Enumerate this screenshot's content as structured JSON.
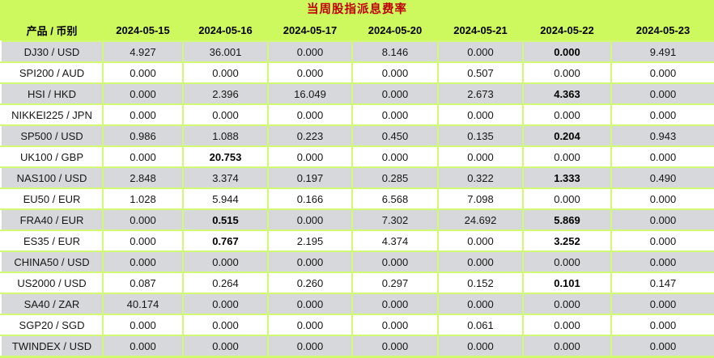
{
  "colors": {
    "header_background": "#cdf95f",
    "gridline": "#d2f973",
    "stripe_gray": "#d6d8dc",
    "stripe_white": "#ffffff",
    "title_red": "#c00000"
  },
  "chart_data": {
    "type": "table",
    "title": "当周股指派息费率",
    "columns": [
      "产品 / 币别",
      "2024-05-15",
      "2024-05-16",
      "2024-05-17",
      "2024-05-20",
      "2024-05-21",
      "2024-05-22",
      "2024-05-23"
    ],
    "rows": [
      {
        "product": "DJ30 / USD",
        "values": [
          "4.927",
          "36.001",
          "0.000",
          "8.146",
          "0.000",
          "0.000",
          "9.491"
        ],
        "bold": [
          false,
          false,
          false,
          false,
          false,
          true,
          false
        ]
      },
      {
        "product": "SPI200 / AUD",
        "values": [
          "0.000",
          "0.000",
          "0.000",
          "0.000",
          "0.507",
          "0.000",
          "0.000"
        ],
        "bold": [
          false,
          false,
          false,
          false,
          false,
          false,
          false
        ]
      },
      {
        "product": "HSI / HKD",
        "values": [
          "0.000",
          "2.396",
          "16.049",
          "0.000",
          "2.673",
          "4.363",
          "0.000"
        ],
        "bold": [
          false,
          false,
          false,
          false,
          false,
          true,
          false
        ]
      },
      {
        "product": "NIKKEI225 / JPN",
        "values": [
          "0.000",
          "0.000",
          "0.000",
          "0.000",
          "0.000",
          "0.000",
          "0.000"
        ],
        "bold": [
          false,
          false,
          false,
          false,
          false,
          false,
          false
        ]
      },
      {
        "product": "SP500 / USD",
        "values": [
          "0.986",
          "1.088",
          "0.223",
          "0.450",
          "0.135",
          "0.204",
          "0.943"
        ],
        "bold": [
          false,
          false,
          false,
          false,
          false,
          true,
          false
        ]
      },
      {
        "product": "UK100 / GBP",
        "values": [
          "0.000",
          "20.753",
          "0.000",
          "0.000",
          "0.000",
          "0.000",
          "0.000"
        ],
        "bold": [
          false,
          true,
          false,
          false,
          false,
          false,
          false
        ]
      },
      {
        "product": "NAS100 / USD",
        "values": [
          "2.848",
          "3.374",
          "0.197",
          "0.285",
          "0.322",
          "1.333",
          "0.490"
        ],
        "bold": [
          false,
          false,
          false,
          false,
          false,
          true,
          false
        ]
      },
      {
        "product": "EU50 / EUR",
        "values": [
          "1.028",
          "5.944",
          "0.166",
          "6.568",
          "7.098",
          "0.000",
          "0.000"
        ],
        "bold": [
          false,
          false,
          false,
          false,
          false,
          false,
          false
        ]
      },
      {
        "product": "FRA40 / EUR",
        "values": [
          "0.000",
          "0.515",
          "0.000",
          "7.302",
          "24.692",
          "5.869",
          "0.000"
        ],
        "bold": [
          false,
          true,
          false,
          false,
          false,
          true,
          false
        ]
      },
      {
        "product": "ES35 / EUR",
        "values": [
          "0.000",
          "0.767",
          "2.195",
          "4.374",
          "0.000",
          "3.252",
          "0.000"
        ],
        "bold": [
          false,
          true,
          false,
          false,
          false,
          true,
          false
        ]
      },
      {
        "product": "CHINA50 / USD",
        "values": [
          "0.000",
          "0.000",
          "0.000",
          "0.000",
          "0.000",
          "0.000",
          "0.000"
        ],
        "bold": [
          false,
          false,
          false,
          false,
          false,
          false,
          false
        ]
      },
      {
        "product": "US2000 / USD",
        "values": [
          "0.087",
          "0.264",
          "0.260",
          "0.297",
          "0.152",
          "0.101",
          "0.147"
        ],
        "bold": [
          false,
          false,
          false,
          false,
          false,
          true,
          false
        ]
      },
      {
        "product": "SA40 / ZAR",
        "values": [
          "40.174",
          "0.000",
          "0.000",
          "0.000",
          "0.000",
          "0.000",
          "0.000"
        ],
        "bold": [
          false,
          false,
          false,
          false,
          false,
          false,
          false
        ]
      },
      {
        "product": "SGP20 / SGD",
        "values": [
          "0.000",
          "0.000",
          "0.000",
          "0.000",
          "0.061",
          "0.000",
          "0.000"
        ],
        "bold": [
          false,
          false,
          false,
          false,
          false,
          false,
          false
        ]
      },
      {
        "product": "TWINDEX / USD",
        "values": [
          "0.000",
          "0.000",
          "0.000",
          "0.000",
          "0.000",
          "0.000",
          "0.000"
        ],
        "bold": [
          false,
          false,
          false,
          false,
          false,
          false,
          false
        ]
      }
    ]
  }
}
